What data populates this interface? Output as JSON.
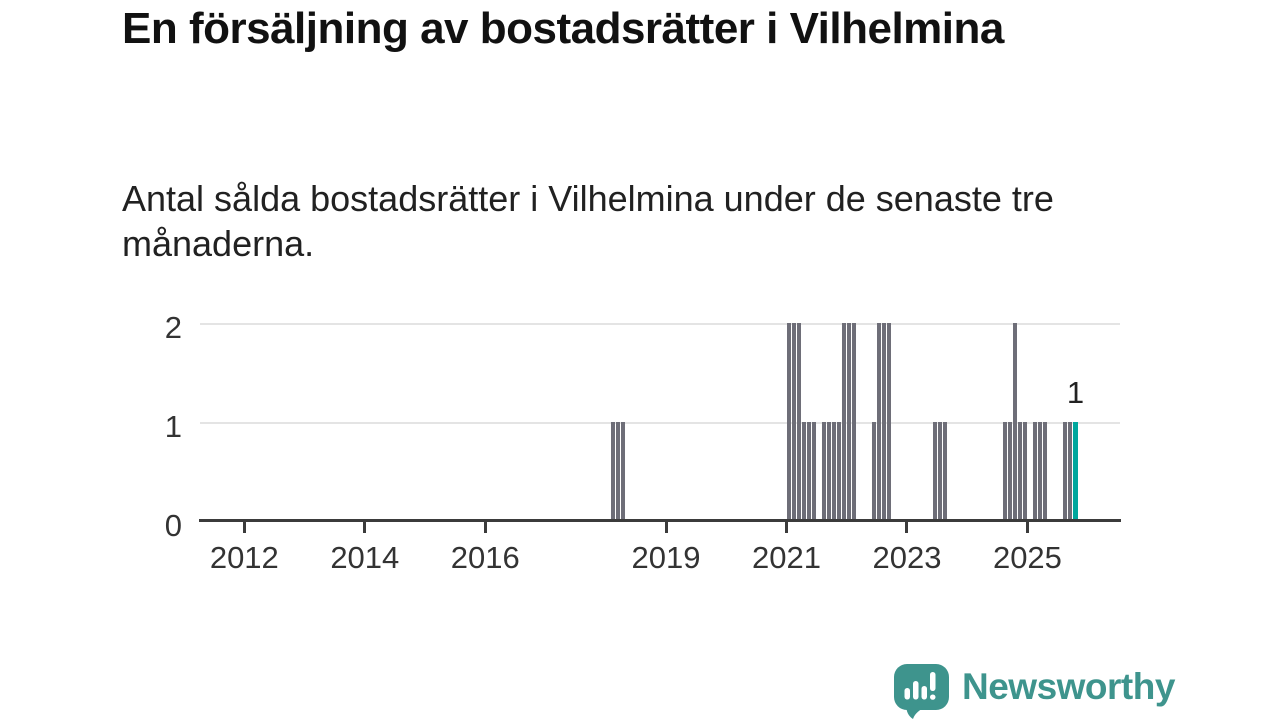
{
  "chart_data": {
    "type": "bar",
    "title": "En försäljning av bostadsrätter i Vilhelmina",
    "subtitle": "Antal sålda bostadsrätter i Vilhelmina under de senaste tre månaderna.",
    "x_axis": {
      "start": "2011-04",
      "end": "2025-10",
      "ticks": [
        2012,
        2014,
        2016,
        2019,
        2021,
        2023,
        2025
      ]
    },
    "y_axis": {
      "ticks": [
        0,
        1,
        2
      ],
      "ylim": [
        0,
        2
      ]
    },
    "grid": true,
    "bar_color": "#6e6e78",
    "highlight_color": "#00a79d",
    "note": "monthly rolling 3-month sales counts; months not listed in series have value 0",
    "series": [
      {
        "month": "2018-02",
        "value": 1
      },
      {
        "month": "2018-03",
        "value": 1
      },
      {
        "month": "2018-04",
        "value": 1
      },
      {
        "month": "2021-01",
        "value": 2
      },
      {
        "month": "2021-02",
        "value": 2
      },
      {
        "month": "2021-03",
        "value": 2
      },
      {
        "month": "2021-04",
        "value": 1
      },
      {
        "month": "2021-05",
        "value": 1
      },
      {
        "month": "2021-06",
        "value": 1
      },
      {
        "month": "2021-08",
        "value": 1
      },
      {
        "month": "2021-09",
        "value": 1
      },
      {
        "month": "2021-10",
        "value": 1
      },
      {
        "month": "2021-11",
        "value": 1
      },
      {
        "month": "2021-12",
        "value": 2
      },
      {
        "month": "2022-01",
        "value": 2
      },
      {
        "month": "2022-02",
        "value": 2
      },
      {
        "month": "2022-06",
        "value": 1
      },
      {
        "month": "2022-07",
        "value": 2
      },
      {
        "month": "2022-08",
        "value": 2
      },
      {
        "month": "2022-09",
        "value": 2
      },
      {
        "month": "2023-06",
        "value": 1
      },
      {
        "month": "2023-07",
        "value": 1
      },
      {
        "month": "2023-08",
        "value": 1
      },
      {
        "month": "2024-08",
        "value": 1
      },
      {
        "month": "2024-09",
        "value": 1
      },
      {
        "month": "2024-10",
        "value": 2
      },
      {
        "month": "2024-11",
        "value": 1
      },
      {
        "month": "2024-12",
        "value": 1
      },
      {
        "month": "2025-02",
        "value": 1
      },
      {
        "month": "2025-03",
        "value": 1
      },
      {
        "month": "2025-04",
        "value": 1
      },
      {
        "month": "2025-08",
        "value": 1
      },
      {
        "month": "2025-09",
        "value": 1
      }
    ],
    "highlight": {
      "month": "2025-10",
      "value": 1,
      "label": "1"
    }
  },
  "footer": {
    "brand": "Newsworthy",
    "brand_color": "#3e948d",
    "logo_icon": "newsworthy-speech-bubble-bar-chart-icon"
  }
}
